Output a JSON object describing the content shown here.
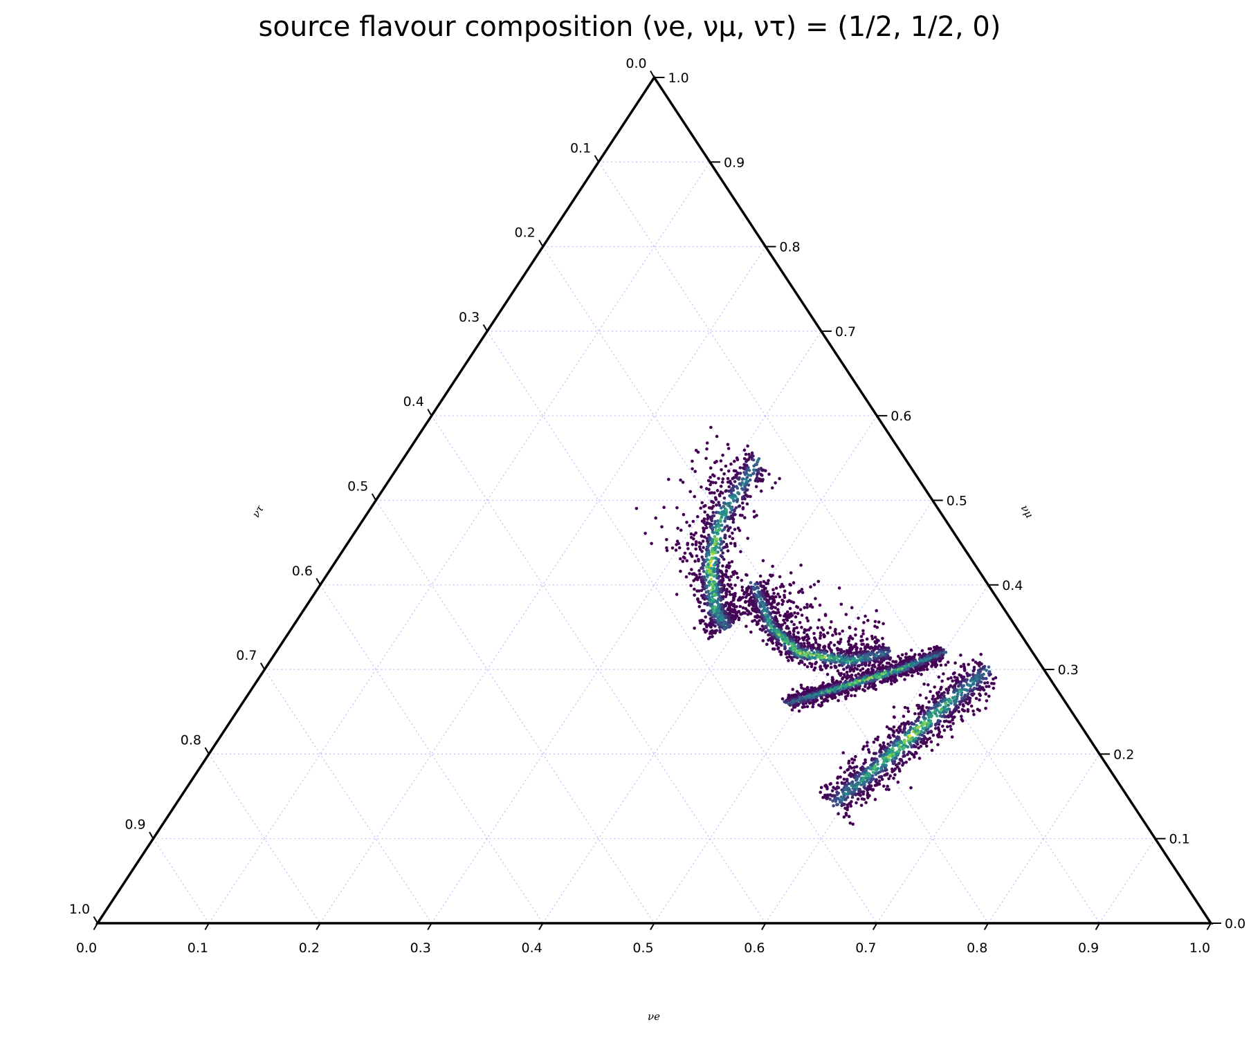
{
  "chart_data": {
    "type": "scatter",
    "subtype": "ternary-density",
    "title": "source flavour composition (νe, νμ, ντ) = (1/2, 1/2, 0)",
    "axes": {
      "bottom": {
        "label": "νe",
        "ticks": [
          "0.0",
          "0.1",
          "0.2",
          "0.3",
          "0.4",
          "0.5",
          "0.6",
          "0.7",
          "0.8",
          "0.9",
          "1.0"
        ],
        "range": [
          0,
          1
        ]
      },
      "right": {
        "label": "νμ",
        "ticks": [
          "0.0",
          "0.1",
          "0.2",
          "0.3",
          "0.4",
          "0.5",
          "0.6",
          "0.7",
          "0.8",
          "0.9",
          "1.0"
        ],
        "range": [
          0,
          1
        ]
      },
      "left": {
        "label": "ντ",
        "ticks": [
          "0.0",
          "0.1",
          "0.2",
          "0.3",
          "0.4",
          "0.5",
          "0.6",
          "0.7",
          "0.8",
          "0.9",
          "1.0"
        ],
        "range": [
          0,
          1
        ]
      }
    },
    "grid": true,
    "grid_color": "#b9b9ff",
    "colormap": "viridis",
    "colormap_stops": [
      "#440154",
      "#3b528b",
      "#21918c",
      "#5ec962",
      "#fde725"
    ],
    "clusters": [
      {
        "spine": [
          [
            0.32,
            0.55,
            0.13
          ],
          [
            0.32,
            0.48,
            0.2
          ],
          [
            0.34,
            0.42,
            0.24
          ],
          [
            0.37,
            0.37,
            0.26
          ],
          [
            0.39,
            0.35,
            0.26
          ]
        ],
        "width_perp": 0.018,
        "outliers_toward_top": true
      },
      {
        "spine": [
          [
            0.39,
            0.4,
            0.21
          ],
          [
            0.43,
            0.35,
            0.22
          ],
          [
            0.47,
            0.32,
            0.21
          ],
          [
            0.52,
            0.31,
            0.17
          ],
          [
            0.55,
            0.32,
            0.13
          ]
        ],
        "width_perp": 0.012,
        "outliers_toward_top": true
      },
      {
        "spine": [
          [
            0.49,
            0.26,
            0.25
          ],
          [
            0.53,
            0.28,
            0.19
          ],
          [
            0.57,
            0.3,
            0.13
          ],
          [
            0.6,
            0.32,
            0.08
          ]
        ],
        "width_perp": 0.008,
        "outliers_toward_top": false
      },
      {
        "spine": [
          [
            0.59,
            0.14,
            0.27
          ],
          [
            0.61,
            0.19,
            0.2
          ],
          [
            0.63,
            0.25,
            0.12
          ],
          [
            0.65,
            0.3,
            0.05
          ]
        ],
        "width_perp": 0.018,
        "outliers_toward_top": false
      }
    ]
  }
}
